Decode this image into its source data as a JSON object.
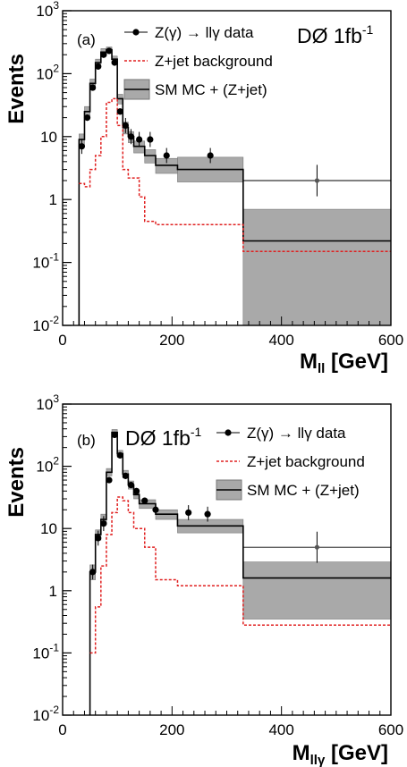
{
  "chart_data": [
    {
      "type": "line",
      "panel": "(a)",
      "experiment": {
        "label": "DØ 1fb",
        "superscript": "-1"
      },
      "ylabel": "Events",
      "xlabel": {
        "main": "M",
        "sub": "ll",
        "unit": "[GeV]"
      },
      "xlim": [
        0,
        600
      ],
      "ylim_log": [
        0.01,
        1000
      ],
      "x_ticks": [
        0,
        200,
        400,
        600
      ],
      "y_ticks": [
        {
          "value": 0.01,
          "base": "10",
          "exp": "-2"
        },
        {
          "value": 0.1,
          "base": "10",
          "exp": "-1"
        },
        {
          "value": 1,
          "base": "1",
          "exp": ""
        },
        {
          "value": 10,
          "base": "10",
          "exp": ""
        },
        {
          "value": 100,
          "base": "10",
          "exp": "2"
        },
        {
          "value": 1000,
          "base": "10",
          "exp": "3"
        }
      ],
      "legend": [
        {
          "text": "Z(γ) → llγ data",
          "kind": "data"
        },
        {
          "text": "Z+jet background",
          "kind": "bkg"
        },
        {
          "text": "SM MC + (Z+jet)",
          "kind": "mc"
        }
      ],
      "data_points": [
        {
          "x": 35,
          "y": 7
        },
        {
          "x": 45,
          "y": 20
        },
        {
          "x": 55,
          "y": 60
        },
        {
          "x": 65,
          "y": 130
        },
        {
          "x": 75,
          "y": 200
        },
        {
          "x": 85,
          "y": 230
        },
        {
          "x": 95,
          "y": 150
        },
        {
          "x": 105,
          "y": 25
        },
        {
          "x": 115,
          "y": 15
        },
        {
          "x": 125,
          "y": 10
        },
        {
          "x": 140,
          "y": 9
        },
        {
          "x": 160,
          "y": 9
        },
        {
          "x": 190,
          "y": 5
        },
        {
          "x": 270,
          "y": 5
        },
        {
          "x": 465,
          "y": 2
        }
      ],
      "mc_bins": [
        {
          "x0": 30,
          "x1": 40,
          "y": 9,
          "lo": 7,
          "hi": 11
        },
        {
          "x0": 40,
          "x1": 50,
          "y": 25,
          "lo": 20,
          "hi": 30
        },
        {
          "x0": 50,
          "x1": 60,
          "y": 70,
          "lo": 60,
          "hi": 82
        },
        {
          "x0": 60,
          "x1": 70,
          "y": 150,
          "lo": 130,
          "hi": 170
        },
        {
          "x0": 70,
          "x1": 80,
          "y": 220,
          "lo": 195,
          "hi": 250
        },
        {
          "x0": 80,
          "x1": 90,
          "y": 240,
          "lo": 215,
          "hi": 265
        },
        {
          "x0": 90,
          "x1": 100,
          "y": 170,
          "lo": 150,
          "hi": 190
        },
        {
          "x0": 100,
          "x1": 110,
          "y": 40,
          "lo": 33,
          "hi": 47
        },
        {
          "x0": 110,
          "x1": 120,
          "y": 14,
          "lo": 11,
          "hi": 17
        },
        {
          "x0": 120,
          "x1": 130,
          "y": 10,
          "lo": 8,
          "hi": 12
        },
        {
          "x0": 130,
          "x1": 150,
          "y": 7,
          "lo": 5.5,
          "hi": 8.5
        },
        {
          "x0": 150,
          "x1": 170,
          "y": 5,
          "lo": 3.8,
          "hi": 6.2
        },
        {
          "x0": 170,
          "x1": 210,
          "y": 3.5,
          "lo": 2.6,
          "hi": 4.5
        },
        {
          "x0": 210,
          "x1": 330,
          "y": 3,
          "lo": 1.9,
          "hi": 4.7
        },
        {
          "x0": 330,
          "x1": 600,
          "y": 0.22,
          "lo": 0.01,
          "hi": 0.7
        }
      ],
      "bkg_bins": [
        {
          "x0": 30,
          "x1": 40,
          "y": 1.8
        },
        {
          "x0": 40,
          "x1": 50,
          "y": 1.6
        },
        {
          "x0": 50,
          "x1": 60,
          "y": 3
        },
        {
          "x0": 60,
          "x1": 70,
          "y": 5
        },
        {
          "x0": 70,
          "x1": 80,
          "y": 10
        },
        {
          "x0": 80,
          "x1": 90,
          "y": 35
        },
        {
          "x0": 90,
          "x1": 100,
          "y": 40
        },
        {
          "x0": 100,
          "x1": 110,
          "y": 15
        },
        {
          "x0": 110,
          "x1": 120,
          "y": 3
        },
        {
          "x0": 120,
          "x1": 140,
          "y": 2.2
        },
        {
          "x0": 140,
          "x1": 150,
          "y": 1.1
        },
        {
          "x0": 150,
          "x1": 170,
          "y": 0.45
        },
        {
          "x0": 170,
          "x1": 330,
          "y": 0.4
        },
        {
          "x0": 330,
          "x1": 600,
          "y": 0.15
        }
      ],
      "upper_box": {
        "x0": 330,
        "x1": 600,
        "y": 2
      }
    },
    {
      "type": "line",
      "panel": "(b)",
      "experiment": {
        "label": "DØ 1fb",
        "superscript": "-1"
      },
      "ylabel": "Events",
      "xlabel": {
        "main": "M",
        "sub": "llγ",
        "unit": "[GeV]"
      },
      "xlim": [
        0,
        600
      ],
      "ylim_log": [
        0.01,
        1000
      ],
      "x_ticks": [
        0,
        200,
        400,
        600
      ],
      "y_ticks": [
        {
          "value": 0.01,
          "base": "10",
          "exp": "-2"
        },
        {
          "value": 0.1,
          "base": "10",
          "exp": "-1"
        },
        {
          "value": 1,
          "base": "1",
          "exp": ""
        },
        {
          "value": 10,
          "base": "10",
          "exp": ""
        },
        {
          "value": 100,
          "base": "10",
          "exp": "2"
        },
        {
          "value": 1000,
          "base": "10",
          "exp": "3"
        }
      ],
      "legend": [
        {
          "text": "Z(γ) → llγ data",
          "kind": "data"
        },
        {
          "text": "Z+jet background",
          "kind": "bkg"
        },
        {
          "text": "SM MC + (Z+jet)",
          "kind": "mc"
        }
      ],
      "data_points": [
        {
          "x": 55,
          "y": 2
        },
        {
          "x": 65,
          "y": 7
        },
        {
          "x": 75,
          "y": 12
        },
        {
          "x": 85,
          "y": 60
        },
        {
          "x": 95,
          "y": 320
        },
        {
          "x": 105,
          "y": 150
        },
        {
          "x": 115,
          "y": 70
        },
        {
          "x": 125,
          "y": 50
        },
        {
          "x": 135,
          "y": 40
        },
        {
          "x": 150,
          "y": 28
        },
        {
          "x": 170,
          "y": 20
        },
        {
          "x": 230,
          "y": 18
        },
        {
          "x": 265,
          "y": 17
        },
        {
          "x": 465,
          "y": 5
        }
      ],
      "mc_bins": [
        {
          "x0": 50,
          "x1": 60,
          "y": 2,
          "lo": 1.5,
          "hi": 2.6
        },
        {
          "x0": 60,
          "x1": 70,
          "y": 8,
          "lo": 6.5,
          "hi": 9.5
        },
        {
          "x0": 70,
          "x1": 80,
          "y": 14,
          "lo": 11.5,
          "hi": 17
        },
        {
          "x0": 80,
          "x1": 90,
          "y": 80,
          "lo": 70,
          "hi": 92
        },
        {
          "x0": 90,
          "x1": 100,
          "y": 350,
          "lo": 310,
          "hi": 390
        },
        {
          "x0": 100,
          "x1": 110,
          "y": 160,
          "lo": 140,
          "hi": 180
        },
        {
          "x0": 110,
          "x1": 120,
          "y": 75,
          "lo": 65,
          "hi": 86
        },
        {
          "x0": 120,
          "x1": 130,
          "y": 50,
          "lo": 43,
          "hi": 58
        },
        {
          "x0": 130,
          "x1": 140,
          "y": 35,
          "lo": 30,
          "hi": 41
        },
        {
          "x0": 140,
          "x1": 170,
          "y": 25,
          "lo": 21,
          "hi": 29
        },
        {
          "x0": 170,
          "x1": 210,
          "y": 17,
          "lo": 14,
          "hi": 20
        },
        {
          "x0": 210,
          "x1": 330,
          "y": 11,
          "lo": 8.5,
          "hi": 14
        },
        {
          "x0": 330,
          "x1": 600,
          "y": 1.6,
          "lo": 0.35,
          "hi": 2.9
        }
      ],
      "bkg_bins": [
        {
          "x0": 50,
          "x1": 60,
          "y": 0.1
        },
        {
          "x0": 60,
          "x1": 70,
          "y": 0.55
        },
        {
          "x0": 70,
          "x1": 80,
          "y": 2.5
        },
        {
          "x0": 80,
          "x1": 90,
          "y": 8
        },
        {
          "x0": 90,
          "x1": 100,
          "y": 18
        },
        {
          "x0": 100,
          "x1": 110,
          "y": 32
        },
        {
          "x0": 110,
          "x1": 120,
          "y": 28
        },
        {
          "x0": 120,
          "x1": 130,
          "y": 18
        },
        {
          "x0": 130,
          "x1": 150,
          "y": 10
        },
        {
          "x0": 150,
          "x1": 170,
          "y": 5
        },
        {
          "x0": 170,
          "x1": 210,
          "y": 1.5
        },
        {
          "x0": 210,
          "x1": 330,
          "y": 1.2
        },
        {
          "x0": 330,
          "x1": 600,
          "y": 0.28
        }
      ],
      "upper_box": {
        "x0": 330,
        "x1": 600,
        "y": 5
      }
    }
  ]
}
